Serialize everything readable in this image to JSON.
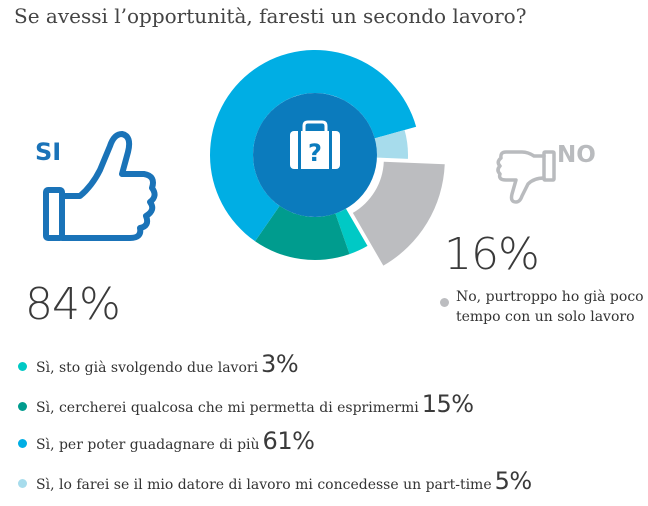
{
  "title": "Se avessi l’opportunità, faresti un secondo lavoro?",
  "yes_label": "SI",
  "no_label": "NO",
  "yes_total": "84%",
  "no_total": "16%",
  "no_note_line1": "No, purtroppo ho già poco",
  "no_note_line2": "tempo con un solo lavoro",
  "colors": {
    "already": "#00c9c5",
    "express": "#009c8e",
    "earn": "#00aee4",
    "parttime": "#a7dcec",
    "no": "#bcbdc0",
    "center": "#0b7bbd",
    "thumb_up": "#1a73b8",
    "thumb_down": "#b9bbbe"
  },
  "legend": [
    {
      "key": "already",
      "label": "Sì, sto già svolgendo due lavori",
      "pct": "3%"
    },
    {
      "key": "express",
      "label": "Sì, cercherei qualcosa che mi permetta di esprimermi",
      "pct": "15%"
    },
    {
      "key": "earn",
      "label": "Sì, per poter guadagnare di più",
      "pct": "61%"
    },
    {
      "key": "parttime",
      "label": "Sì, lo farei se il mio datore di lavoro mi concedesse un part-time",
      "pct": "5%"
    }
  ],
  "chart_data": {
    "type": "pie",
    "categories": [
      "Sì, sto già svolgendo due lavori",
      "Sì, cercherei qualcosa che mi permetta di esprimermi",
      "Sì, per poter guadagnare di più",
      "Sì, lo farei se il mio datore di lavoro mi concedesse un part-time",
      "No, purtroppo ho già poco tempo con un solo lavoro"
    ],
    "values": [
      3,
      15,
      61,
      5,
      16
    ],
    "title": "Se avessi l’opportunità, faresti un secondo lavoro?",
    "totals": {
      "SI": 84,
      "NO": 16
    }
  }
}
